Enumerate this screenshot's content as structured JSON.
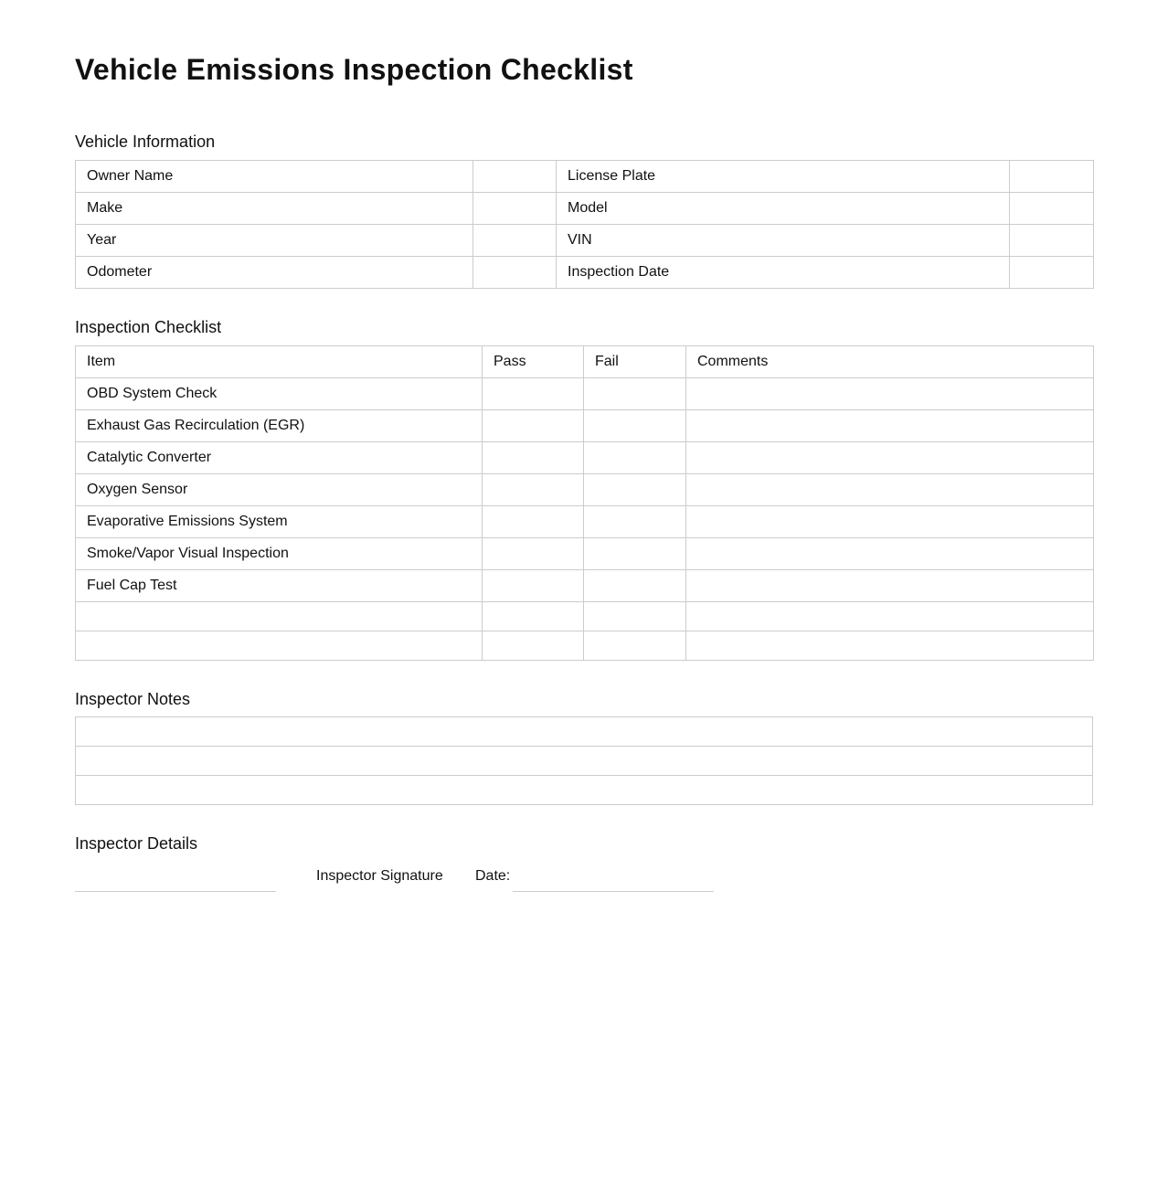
{
  "title": "Vehicle Emissions Inspection Checklist",
  "vehicle_info": {
    "heading": "Vehicle Information",
    "rows": [
      [
        "Owner Name",
        "",
        "License Plate",
        ""
      ],
      [
        "Make",
        "",
        "Model",
        ""
      ],
      [
        "Year",
        "",
        "VIN",
        ""
      ],
      [
        "Odometer",
        "",
        "Inspection Date",
        ""
      ]
    ]
  },
  "checklist": {
    "heading": "Inspection Checklist",
    "columns": [
      "Item",
      "Pass",
      "Fail",
      "Comments"
    ],
    "items": [
      "OBD System Check",
      "Exhaust Gas Recirculation (EGR)",
      "Catalytic Converter",
      "Oxygen Sensor",
      "Evaporative Emissions System",
      "Smoke/Vapor Visual Inspection",
      "Fuel Cap Test"
    ]
  },
  "notes": {
    "heading": "Inspector Notes"
  },
  "details": {
    "heading": "Inspector Details",
    "signature_label": "Inspector Signature",
    "date_label": "Date:"
  }
}
